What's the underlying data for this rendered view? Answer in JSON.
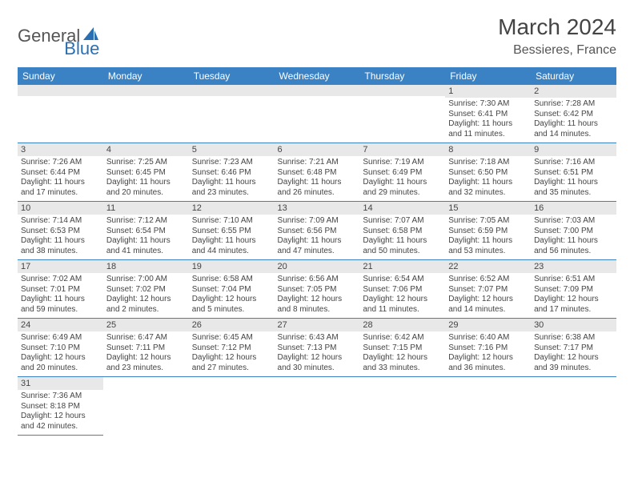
{
  "logo": {
    "text1": "General",
    "text2": "Blue"
  },
  "title": "March 2024",
  "location": "Bessieres, France",
  "colors": {
    "header_bg": "#3b82c4",
    "header_text": "#ffffff",
    "daynum_bg": "#e8e8e8",
    "text": "#444444",
    "border": "#3b82c4",
    "logo_grey": "#555555",
    "logo_blue": "#2b6fb3"
  },
  "fonts": {
    "title_size": 28,
    "location_size": 16,
    "header_size": 12,
    "daynum_size": 11,
    "body_size": 10
  },
  "weekday_labels": [
    "Sunday",
    "Monday",
    "Tuesday",
    "Wednesday",
    "Thursday",
    "Friday",
    "Saturday"
  ],
  "weeks": [
    [
      null,
      null,
      null,
      null,
      null,
      {
        "n": "1",
        "sr": "Sunrise: 7:30 AM",
        "ss": "Sunset: 6:41 PM",
        "d1": "Daylight: 11 hours",
        "d2": "and 11 minutes."
      },
      {
        "n": "2",
        "sr": "Sunrise: 7:28 AM",
        "ss": "Sunset: 6:42 PM",
        "d1": "Daylight: 11 hours",
        "d2": "and 14 minutes."
      }
    ],
    [
      {
        "n": "3",
        "sr": "Sunrise: 7:26 AM",
        "ss": "Sunset: 6:44 PM",
        "d1": "Daylight: 11 hours",
        "d2": "and 17 minutes."
      },
      {
        "n": "4",
        "sr": "Sunrise: 7:25 AM",
        "ss": "Sunset: 6:45 PM",
        "d1": "Daylight: 11 hours",
        "d2": "and 20 minutes."
      },
      {
        "n": "5",
        "sr": "Sunrise: 7:23 AM",
        "ss": "Sunset: 6:46 PM",
        "d1": "Daylight: 11 hours",
        "d2": "and 23 minutes."
      },
      {
        "n": "6",
        "sr": "Sunrise: 7:21 AM",
        "ss": "Sunset: 6:48 PM",
        "d1": "Daylight: 11 hours",
        "d2": "and 26 minutes."
      },
      {
        "n": "7",
        "sr": "Sunrise: 7:19 AM",
        "ss": "Sunset: 6:49 PM",
        "d1": "Daylight: 11 hours",
        "d2": "and 29 minutes."
      },
      {
        "n": "8",
        "sr": "Sunrise: 7:18 AM",
        "ss": "Sunset: 6:50 PM",
        "d1": "Daylight: 11 hours",
        "d2": "and 32 minutes."
      },
      {
        "n": "9",
        "sr": "Sunrise: 7:16 AM",
        "ss": "Sunset: 6:51 PM",
        "d1": "Daylight: 11 hours",
        "d2": "and 35 minutes."
      }
    ],
    [
      {
        "n": "10",
        "sr": "Sunrise: 7:14 AM",
        "ss": "Sunset: 6:53 PM",
        "d1": "Daylight: 11 hours",
        "d2": "and 38 minutes."
      },
      {
        "n": "11",
        "sr": "Sunrise: 7:12 AM",
        "ss": "Sunset: 6:54 PM",
        "d1": "Daylight: 11 hours",
        "d2": "and 41 minutes."
      },
      {
        "n": "12",
        "sr": "Sunrise: 7:10 AM",
        "ss": "Sunset: 6:55 PM",
        "d1": "Daylight: 11 hours",
        "d2": "and 44 minutes."
      },
      {
        "n": "13",
        "sr": "Sunrise: 7:09 AM",
        "ss": "Sunset: 6:56 PM",
        "d1": "Daylight: 11 hours",
        "d2": "and 47 minutes."
      },
      {
        "n": "14",
        "sr": "Sunrise: 7:07 AM",
        "ss": "Sunset: 6:58 PM",
        "d1": "Daylight: 11 hours",
        "d2": "and 50 minutes."
      },
      {
        "n": "15",
        "sr": "Sunrise: 7:05 AM",
        "ss": "Sunset: 6:59 PM",
        "d1": "Daylight: 11 hours",
        "d2": "and 53 minutes."
      },
      {
        "n": "16",
        "sr": "Sunrise: 7:03 AM",
        "ss": "Sunset: 7:00 PM",
        "d1": "Daylight: 11 hours",
        "d2": "and 56 minutes."
      }
    ],
    [
      {
        "n": "17",
        "sr": "Sunrise: 7:02 AM",
        "ss": "Sunset: 7:01 PM",
        "d1": "Daylight: 11 hours",
        "d2": "and 59 minutes."
      },
      {
        "n": "18",
        "sr": "Sunrise: 7:00 AM",
        "ss": "Sunset: 7:02 PM",
        "d1": "Daylight: 12 hours",
        "d2": "and 2 minutes."
      },
      {
        "n": "19",
        "sr": "Sunrise: 6:58 AM",
        "ss": "Sunset: 7:04 PM",
        "d1": "Daylight: 12 hours",
        "d2": "and 5 minutes."
      },
      {
        "n": "20",
        "sr": "Sunrise: 6:56 AM",
        "ss": "Sunset: 7:05 PM",
        "d1": "Daylight: 12 hours",
        "d2": "and 8 minutes."
      },
      {
        "n": "21",
        "sr": "Sunrise: 6:54 AM",
        "ss": "Sunset: 7:06 PM",
        "d1": "Daylight: 12 hours",
        "d2": "and 11 minutes."
      },
      {
        "n": "22",
        "sr": "Sunrise: 6:52 AM",
        "ss": "Sunset: 7:07 PM",
        "d1": "Daylight: 12 hours",
        "d2": "and 14 minutes."
      },
      {
        "n": "23",
        "sr": "Sunrise: 6:51 AM",
        "ss": "Sunset: 7:09 PM",
        "d1": "Daylight: 12 hours",
        "d2": "and 17 minutes."
      }
    ],
    [
      {
        "n": "24",
        "sr": "Sunrise: 6:49 AM",
        "ss": "Sunset: 7:10 PM",
        "d1": "Daylight: 12 hours",
        "d2": "and 20 minutes."
      },
      {
        "n": "25",
        "sr": "Sunrise: 6:47 AM",
        "ss": "Sunset: 7:11 PM",
        "d1": "Daylight: 12 hours",
        "d2": "and 23 minutes."
      },
      {
        "n": "26",
        "sr": "Sunrise: 6:45 AM",
        "ss": "Sunset: 7:12 PM",
        "d1": "Daylight: 12 hours",
        "d2": "and 27 minutes."
      },
      {
        "n": "27",
        "sr": "Sunrise: 6:43 AM",
        "ss": "Sunset: 7:13 PM",
        "d1": "Daylight: 12 hours",
        "d2": "and 30 minutes."
      },
      {
        "n": "28",
        "sr": "Sunrise: 6:42 AM",
        "ss": "Sunset: 7:15 PM",
        "d1": "Daylight: 12 hours",
        "d2": "and 33 minutes."
      },
      {
        "n": "29",
        "sr": "Sunrise: 6:40 AM",
        "ss": "Sunset: 7:16 PM",
        "d1": "Daylight: 12 hours",
        "d2": "and 36 minutes."
      },
      {
        "n": "30",
        "sr": "Sunrise: 6:38 AM",
        "ss": "Sunset: 7:17 PM",
        "d1": "Daylight: 12 hours",
        "d2": "and 39 minutes."
      }
    ],
    [
      {
        "n": "31",
        "sr": "Sunrise: 7:36 AM",
        "ss": "Sunset: 8:18 PM",
        "d1": "Daylight: 12 hours",
        "d2": "and 42 minutes."
      },
      null,
      null,
      null,
      null,
      null,
      null
    ]
  ]
}
